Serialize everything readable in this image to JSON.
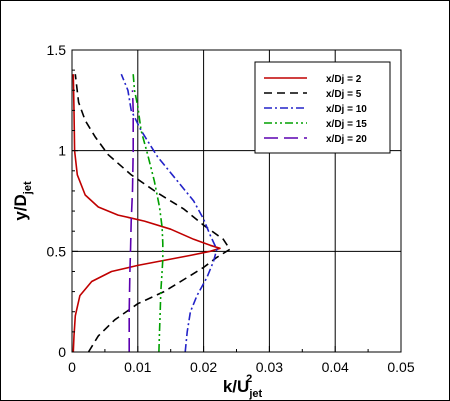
{
  "chart_data": {
    "type": "line",
    "xlabel": {
      "main": "k/U",
      "sub": "jet",
      "sup": "2"
    },
    "ylabel": {
      "main": "y/D",
      "sub": "jet"
    },
    "xlim": [
      0,
      0.05
    ],
    "ylim": [
      0,
      1.5
    ],
    "xticks": [
      "0",
      "0.01",
      "0.02",
      "0.03",
      "0.04",
      "0.05"
    ],
    "yticks": [
      "0",
      "0.5",
      "1",
      "1.5"
    ],
    "grid": true,
    "legend_position": "top-right",
    "series": [
      {
        "name": "x/Dj = 2",
        "color": "#c00000",
        "dash": "solid",
        "points": [
          [
            0.0002,
            0
          ],
          [
            0.0003,
            0.08
          ],
          [
            0.0005,
            0.18
          ],
          [
            0.0012,
            0.28
          ],
          [
            0.003,
            0.35
          ],
          [
            0.006,
            0.4
          ],
          [
            0.01,
            0.43
          ],
          [
            0.014,
            0.455
          ],
          [
            0.018,
            0.48
          ],
          [
            0.021,
            0.5
          ],
          [
            0.0225,
            0.515
          ],
          [
            0.021,
            0.53
          ],
          [
            0.0185,
            0.56
          ],
          [
            0.015,
            0.61
          ],
          [
            0.011,
            0.65
          ],
          [
            0.007,
            0.68
          ],
          [
            0.004,
            0.72
          ],
          [
            0.002,
            0.78
          ],
          [
            0.0008,
            0.88
          ],
          [
            0.0004,
            1.0
          ],
          [
            0.0003,
            1.2
          ],
          [
            0.0002,
            1.38
          ]
        ]
      },
      {
        "name": "x/Dj = 5",
        "color": "#000000",
        "dash": "8,5",
        "points": [
          [
            0.0025,
            0
          ],
          [
            0.004,
            0.08
          ],
          [
            0.0065,
            0.16
          ],
          [
            0.01,
            0.24
          ],
          [
            0.014,
            0.3
          ],
          [
            0.017,
            0.36
          ],
          [
            0.02,
            0.42
          ],
          [
            0.022,
            0.47
          ],
          [
            0.024,
            0.51
          ],
          [
            0.023,
            0.56
          ],
          [
            0.02,
            0.63
          ],
          [
            0.017,
            0.71
          ],
          [
            0.013,
            0.79
          ],
          [
            0.009,
            0.88
          ],
          [
            0.0055,
            0.98
          ],
          [
            0.0035,
            1.07
          ],
          [
            0.002,
            1.15
          ],
          [
            0.001,
            1.24
          ],
          [
            0.0005,
            1.38
          ]
        ]
      },
      {
        "name": "x/Dj = 10",
        "color": "#2323c8",
        "dash": "8,3,2,3",
        "points": [
          [
            0.0172,
            0
          ],
          [
            0.0175,
            0.1
          ],
          [
            0.018,
            0.2
          ],
          [
            0.019,
            0.28
          ],
          [
            0.0205,
            0.37
          ],
          [
            0.0215,
            0.45
          ],
          [
            0.022,
            0.51
          ],
          [
            0.021,
            0.58
          ],
          [
            0.02,
            0.66
          ],
          [
            0.0185,
            0.75
          ],
          [
            0.016,
            0.85
          ],
          [
            0.013,
            0.97
          ],
          [
            0.0105,
            1.1
          ],
          [
            0.009,
            1.2
          ],
          [
            0.0085,
            1.3
          ],
          [
            0.0075,
            1.38
          ]
        ]
      },
      {
        "name": "x/Dj = 15",
        "color": "#00a000",
        "dash": "8,3,2,3,2,3",
        "points": [
          [
            0.0132,
            0
          ],
          [
            0.0133,
            0.1
          ],
          [
            0.0134,
            0.2
          ],
          [
            0.0135,
            0.3
          ],
          [
            0.0137,
            0.4
          ],
          [
            0.0138,
            0.46
          ],
          [
            0.0138,
            0.54
          ],
          [
            0.0137,
            0.62
          ],
          [
            0.0133,
            0.72
          ],
          [
            0.0125,
            0.85
          ],
          [
            0.0115,
            0.98
          ],
          [
            0.0105,
            1.1
          ],
          [
            0.01,
            1.22
          ],
          [
            0.0095,
            1.3
          ],
          [
            0.0093,
            1.38
          ]
        ]
      },
      {
        "name": "x/Dj = 20",
        "color": "#5c00b0",
        "dash": "14,6",
        "points": [
          [
            0.0087,
            0
          ],
          [
            0.0087,
            0.2
          ],
          [
            0.0088,
            0.4
          ],
          [
            0.0089,
            0.52
          ],
          [
            0.009,
            0.65
          ],
          [
            0.0092,
            0.8
          ],
          [
            0.0093,
            1.0
          ],
          [
            0.0093,
            1.2
          ],
          [
            0.0092,
            1.3
          ]
        ]
      }
    ]
  }
}
